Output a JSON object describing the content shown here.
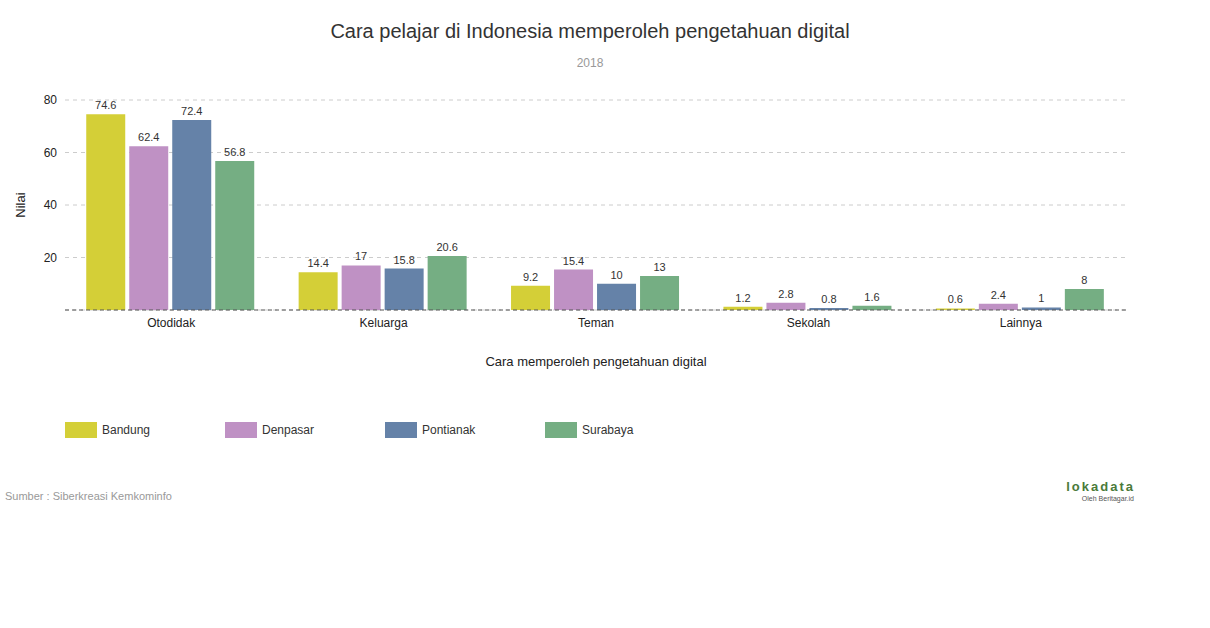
{
  "chart_data": {
    "type": "bar",
    "title": "Cara pelajar di Indonesia memperoleh pengetahuan digital",
    "subtitle": "2018",
    "x_label": "Cara memperoleh pengetahuan digital",
    "y_label": "Nilai",
    "source": "Sumber : Siberkreasi Kemkominfo",
    "annotations": [
      "lokadata",
      "Oleh Beritagar.id"
    ],
    "categories": [
      "Otodidak",
      "Keluarga",
      "Teman",
      "Sekolah",
      "Lainnya"
    ],
    "series": [
      {
        "name": "Bandung",
        "color": "#d4cf37",
        "values": [
          74.6,
          14.4,
          9.2,
          1.2,
          0.6
        ]
      },
      {
        "name": "Denpasar",
        "color": "#bf91c4",
        "values": [
          62.4,
          17,
          15.4,
          2.8,
          2.4
        ]
      },
      {
        "name": "Pontianak",
        "color": "#6582a8",
        "values": [
          72.4,
          15.8,
          10,
          0.8,
          1
        ]
      },
      {
        "name": "Surabaya",
        "color": "#75ae83",
        "values": [
          56.8,
          20.6,
          13,
          1.6,
          8
        ]
      }
    ],
    "ylim": [
      0,
      80
    ],
    "yticks": [
      20,
      40,
      60,
      80
    ],
    "grid": true,
    "data_labels": true,
    "legend": "bottom"
  }
}
